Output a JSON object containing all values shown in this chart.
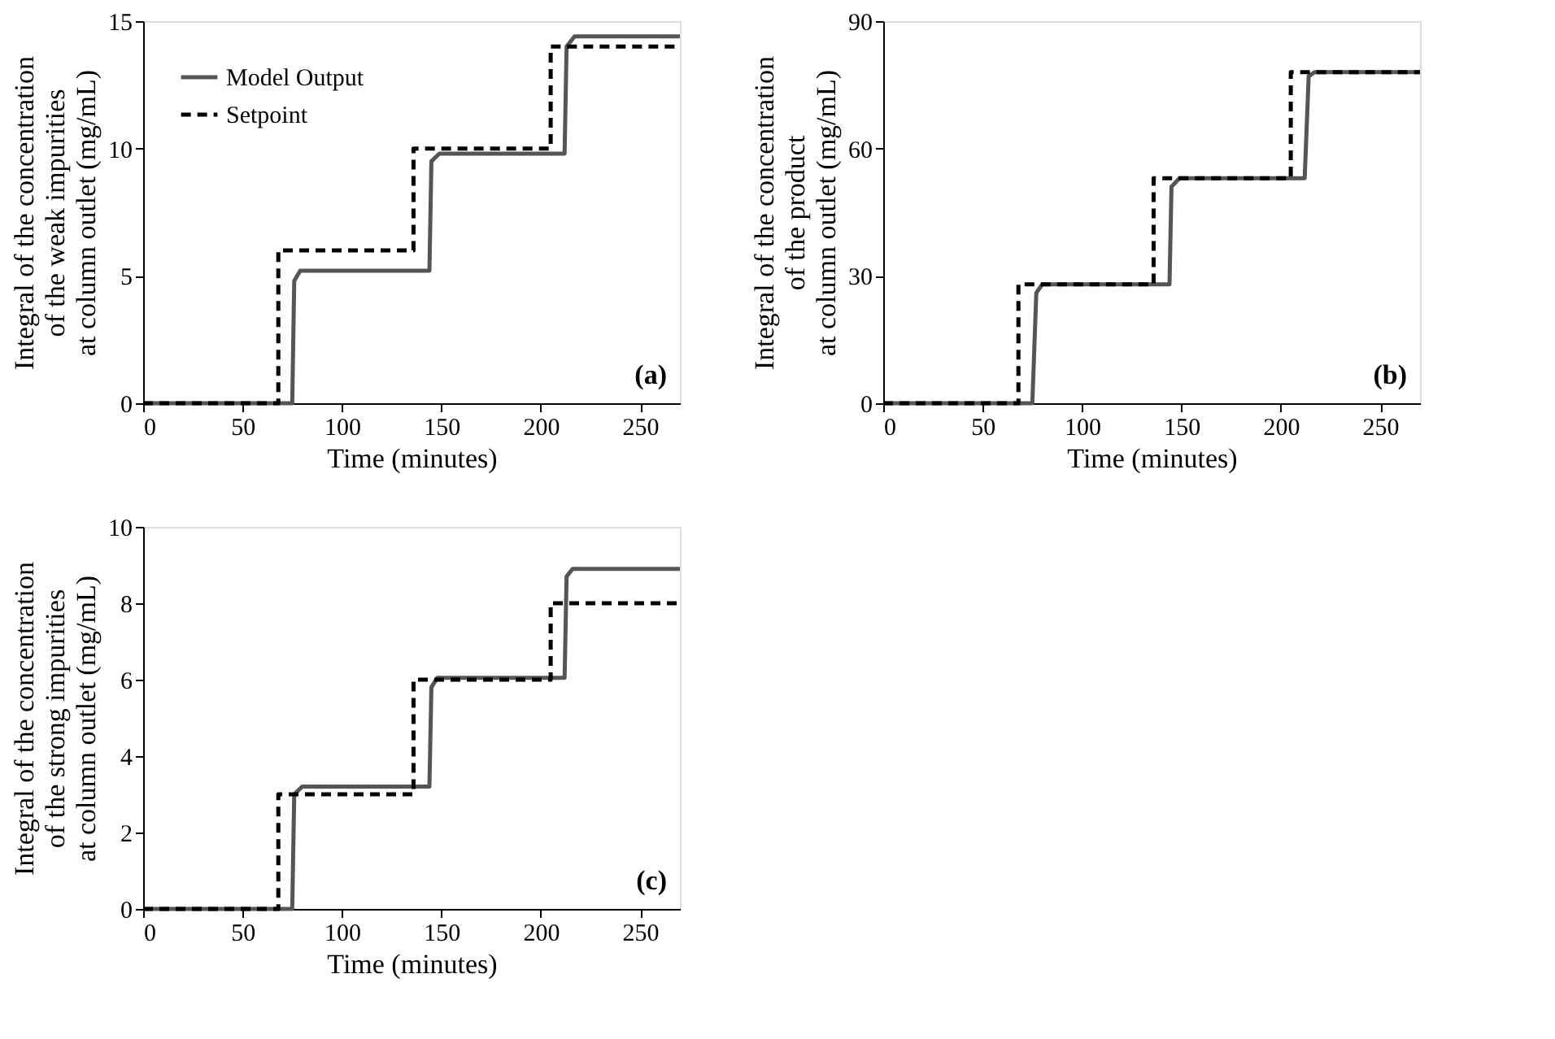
{
  "chart_data": [
    {
      "type": "line",
      "xlabel": "Time (minutes)",
      "ylabel": "Integral of the concentration\nof the weak impurities\nat column outlet (mg/mL)",
      "annotations": [
        "(a)"
      ],
      "xlim": [
        0,
        270
      ],
      "xticks": [
        0,
        50,
        100,
        150,
        200,
        250
      ],
      "ylim": [
        0,
        15
      ],
      "yticks": [
        0,
        5,
        10,
        15
      ],
      "grid": false,
      "legend": "top left",
      "series": [
        {
          "name": "Model Output",
          "color": "#555555",
          "line_style": "solid",
          "x": [
            0,
            75,
            76,
            79,
            144,
            145,
            149,
            212,
            213,
            217,
            270
          ],
          "values": [
            0,
            0,
            4.8,
            5.2,
            5.2,
            9.5,
            9.8,
            9.8,
            14,
            14.4,
            14.4
          ]
        },
        {
          "name": "Setpoint",
          "color": "#000000",
          "line_style": "dashed",
          "x": [
            0,
            68,
            68,
            136,
            136,
            205,
            205,
            270
          ],
          "values": [
            0,
            0,
            6,
            6,
            10,
            10,
            14,
            14
          ]
        }
      ]
    },
    {
      "type": "line",
      "xlabel": "Time (minutes)",
      "ylabel": "Integral of the concentration\nof the product\nat column outlet (mg/mL)",
      "annotations": [
        "(b)"
      ],
      "xlim": [
        0,
        270
      ],
      "xticks": [
        0,
        50,
        100,
        150,
        200,
        250
      ],
      "ylim": [
        0,
        90
      ],
      "yticks": [
        0,
        30,
        60,
        90
      ],
      "grid": false,
      "legend": "top left",
      "series": [
        {
          "name": "Model Output",
          "color": "#555555",
          "line_style": "solid",
          "x": [
            0,
            75,
            77,
            80,
            144,
            145,
            149,
            212,
            214,
            217,
            270
          ],
          "values": [
            0,
            0,
            26,
            28,
            28,
            51,
            53,
            53,
            77,
            78,
            78
          ]
        },
        {
          "name": "Setpoint",
          "color": "#000000",
          "line_style": "dashed",
          "x": [
            0,
            68,
            68,
            136,
            136,
            205,
            205,
            270
          ],
          "values": [
            0,
            0,
            28,
            28,
            53,
            53,
            78,
            78
          ]
        }
      ]
    },
    {
      "type": "line",
      "xlabel": "Time (minutes)",
      "ylabel": "Integral of the concentration\nof the strong impurities\nat column outlet (mg/mL)",
      "annotations": [
        "(c)"
      ],
      "xlim": [
        0,
        270
      ],
      "xticks": [
        0,
        50,
        100,
        150,
        200,
        250
      ],
      "ylim": [
        0,
        10
      ],
      "yticks": [
        0,
        2,
        4,
        6,
        8,
        10
      ],
      "grid": false,
      "legend": "top left",
      "series": [
        {
          "name": "Model Output",
          "color": "#555555",
          "line_style": "solid",
          "x": [
            0,
            75,
            76,
            80,
            144,
            145,
            148,
            212,
            213,
            216,
            270
          ],
          "values": [
            0,
            0,
            3,
            3.2,
            3.2,
            5.8,
            6.05,
            6.05,
            8.7,
            8.9,
            8.9
          ]
        },
        {
          "name": "Setpoint",
          "color": "#000000",
          "line_style": "dashed",
          "x": [
            0,
            68,
            68,
            136,
            136,
            205,
            205,
            270
          ],
          "values": [
            0,
            0,
            3,
            3,
            6,
            6,
            8,
            8
          ]
        }
      ]
    }
  ]
}
